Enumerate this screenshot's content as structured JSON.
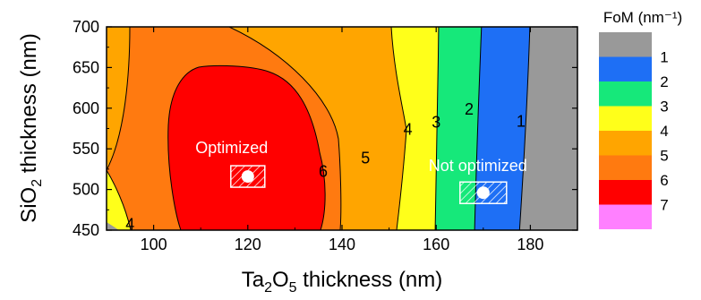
{
  "chart_data": {
    "type": "contour",
    "xlabel": "Ta2O5 thickness (nm)",
    "xlabel_parts": {
      "a": "Ta",
      "b": "2",
      "c": "O",
      "d": "5",
      "e": " thickness (nm)"
    },
    "ylabel": "SiO2 thickness (nm)",
    "ylabel_parts": {
      "a": "SiO",
      "b": "2",
      "c": " thickness (nm)"
    },
    "xlim": [
      90,
      190
    ],
    "ylim": [
      450,
      700
    ],
    "xticks": [
      100,
      120,
      140,
      160,
      180
    ],
    "yticks": [
      450,
      500,
      550,
      600,
      650,
      700
    ],
    "legend_title": "FoM (nm⁻¹)",
    "legend": [
      {
        "label": "1",
        "color": "#999999"
      },
      {
        "label": "2",
        "color": "#1e6ff5"
      },
      {
        "label": "3",
        "color": "#16e87a"
      },
      {
        "label": "4",
        "color": "#ffff1a"
      },
      {
        "label": "5",
        "color": "#ffa500"
      },
      {
        "label": "6",
        "color": "#ff7a10"
      },
      {
        "label": "7",
        "color": "#ff0000"
      },
      {
        "label": "",
        "color": "#ff80ff"
      }
    ],
    "contour_labels": [
      {
        "label": "1",
        "x": 178,
        "y": 585
      },
      {
        "label": "2",
        "x": 167,
        "y": 600
      },
      {
        "label": "3",
        "x": 160,
        "y": 584
      },
      {
        "label": "4",
        "x": 154,
        "y": 575
      },
      {
        "label": "5",
        "x": 145,
        "y": 540
      },
      {
        "label": "6",
        "x": 136,
        "y": 523
      },
      {
        "label": "4",
        "x": 95,
        "y": 458
      }
    ],
    "annotations": [
      {
        "label": "Optimized",
        "x": 120,
        "y": 516
      },
      {
        "label": "Not optimized",
        "x": 170,
        "y": 496
      }
    ]
  }
}
